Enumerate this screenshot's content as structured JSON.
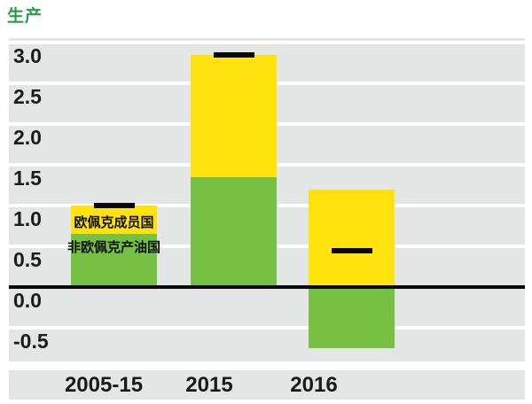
{
  "title": "生产",
  "colors": {
    "title_green": "#2b9c48",
    "opec_yellow": "#ffe20e",
    "non_opec_green": "#76c043",
    "marker_black": "#0a0a0a",
    "plot_band_gray": "#e3e6e4",
    "gridline_white": "#ffffff"
  },
  "chart_data": {
    "type": "bar",
    "stacked": true,
    "title": "生产",
    "categories": [
      "2005-15",
      "2015",
      "2016"
    ],
    "series": [
      {
        "name": "非欧佩克产油国",
        "color": "#76c043",
        "values": [
          0.65,
          1.35,
          -0.75
        ]
      },
      {
        "name": "欧佩克成员国",
        "color": "#ffe20e",
        "values": [
          0.35,
          1.5,
          1.2
        ]
      }
    ],
    "net_marker_values": [
      1.0,
      2.85,
      0.45
    ],
    "ytick_labels": [
      "3.0",
      "2.5",
      "2.0",
      "1.5",
      "1.0",
      "0.5",
      "0.0",
      "-0.5"
    ],
    "ytick_values": [
      3.0,
      2.5,
      2.0,
      1.5,
      1.0,
      0.5,
      0.0,
      -0.5
    ],
    "ylim": [
      -0.9,
      3.05
    ],
    "xlabel": "",
    "ylabel": "",
    "grid": "horizontal",
    "legend_position": "inside-first-bar",
    "legend": [
      {
        "label": "欧佩克成员国",
        "swatch": "#ffe20e"
      },
      {
        "label": "非欧佩克产油国",
        "swatch": "#76c043"
      }
    ]
  }
}
